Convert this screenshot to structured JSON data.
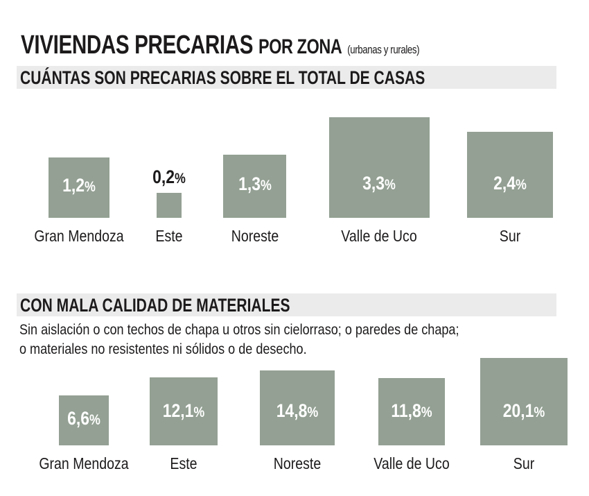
{
  "title": {
    "main": "VIVIENDAS PRECARIAS",
    "secondary": "POR ZONA",
    "note": "(urbanas y rurales)"
  },
  "sections": [
    {
      "heading": "CUÁNTAS SON PRECARIAS SOBRE EL TOTAL DE CASAS",
      "description": ""
    },
    {
      "heading": "CON MALA CALIDAD DE MATERIALES",
      "description_lines": [
        "Sin aislación o con techos de chapa u otros sin cielorraso; o paredes de chapa;",
        "o materiales no resistentes ni sólidos o de desecho."
      ]
    }
  ],
  "chart_data": [
    {
      "type": "bar",
      "title": "CUÁNTAS SON PRECARIAS SOBRE EL TOTAL DE CASAS",
      "encoding": "proportional squares",
      "categories": [
        "Gran Mendoza",
        "Este",
        "Noreste",
        "Valle de Uco",
        "Sur"
      ],
      "values": [
        1.2,
        0.2,
        1.3,
        3.3,
        2.4
      ],
      "labels": [
        "1,2",
        "0,2",
        "1,3",
        "3,3",
        "2,4"
      ],
      "unit": "%",
      "color": "#93a093"
    },
    {
      "type": "bar",
      "title": "CON MALA CALIDAD DE MATERIALES",
      "encoding": "proportional squares",
      "categories": [
        "Gran Mendoza",
        "Este",
        "Noreste",
        "Valle de Uco",
        "Sur"
      ],
      "values": [
        6.6,
        12.1,
        14.8,
        11.8,
        20.1
      ],
      "labels": [
        "6,6",
        "12,1",
        "14,8",
        "11,8",
        "20,1"
      ],
      "unit": "%",
      "color": "#93a093"
    }
  ]
}
